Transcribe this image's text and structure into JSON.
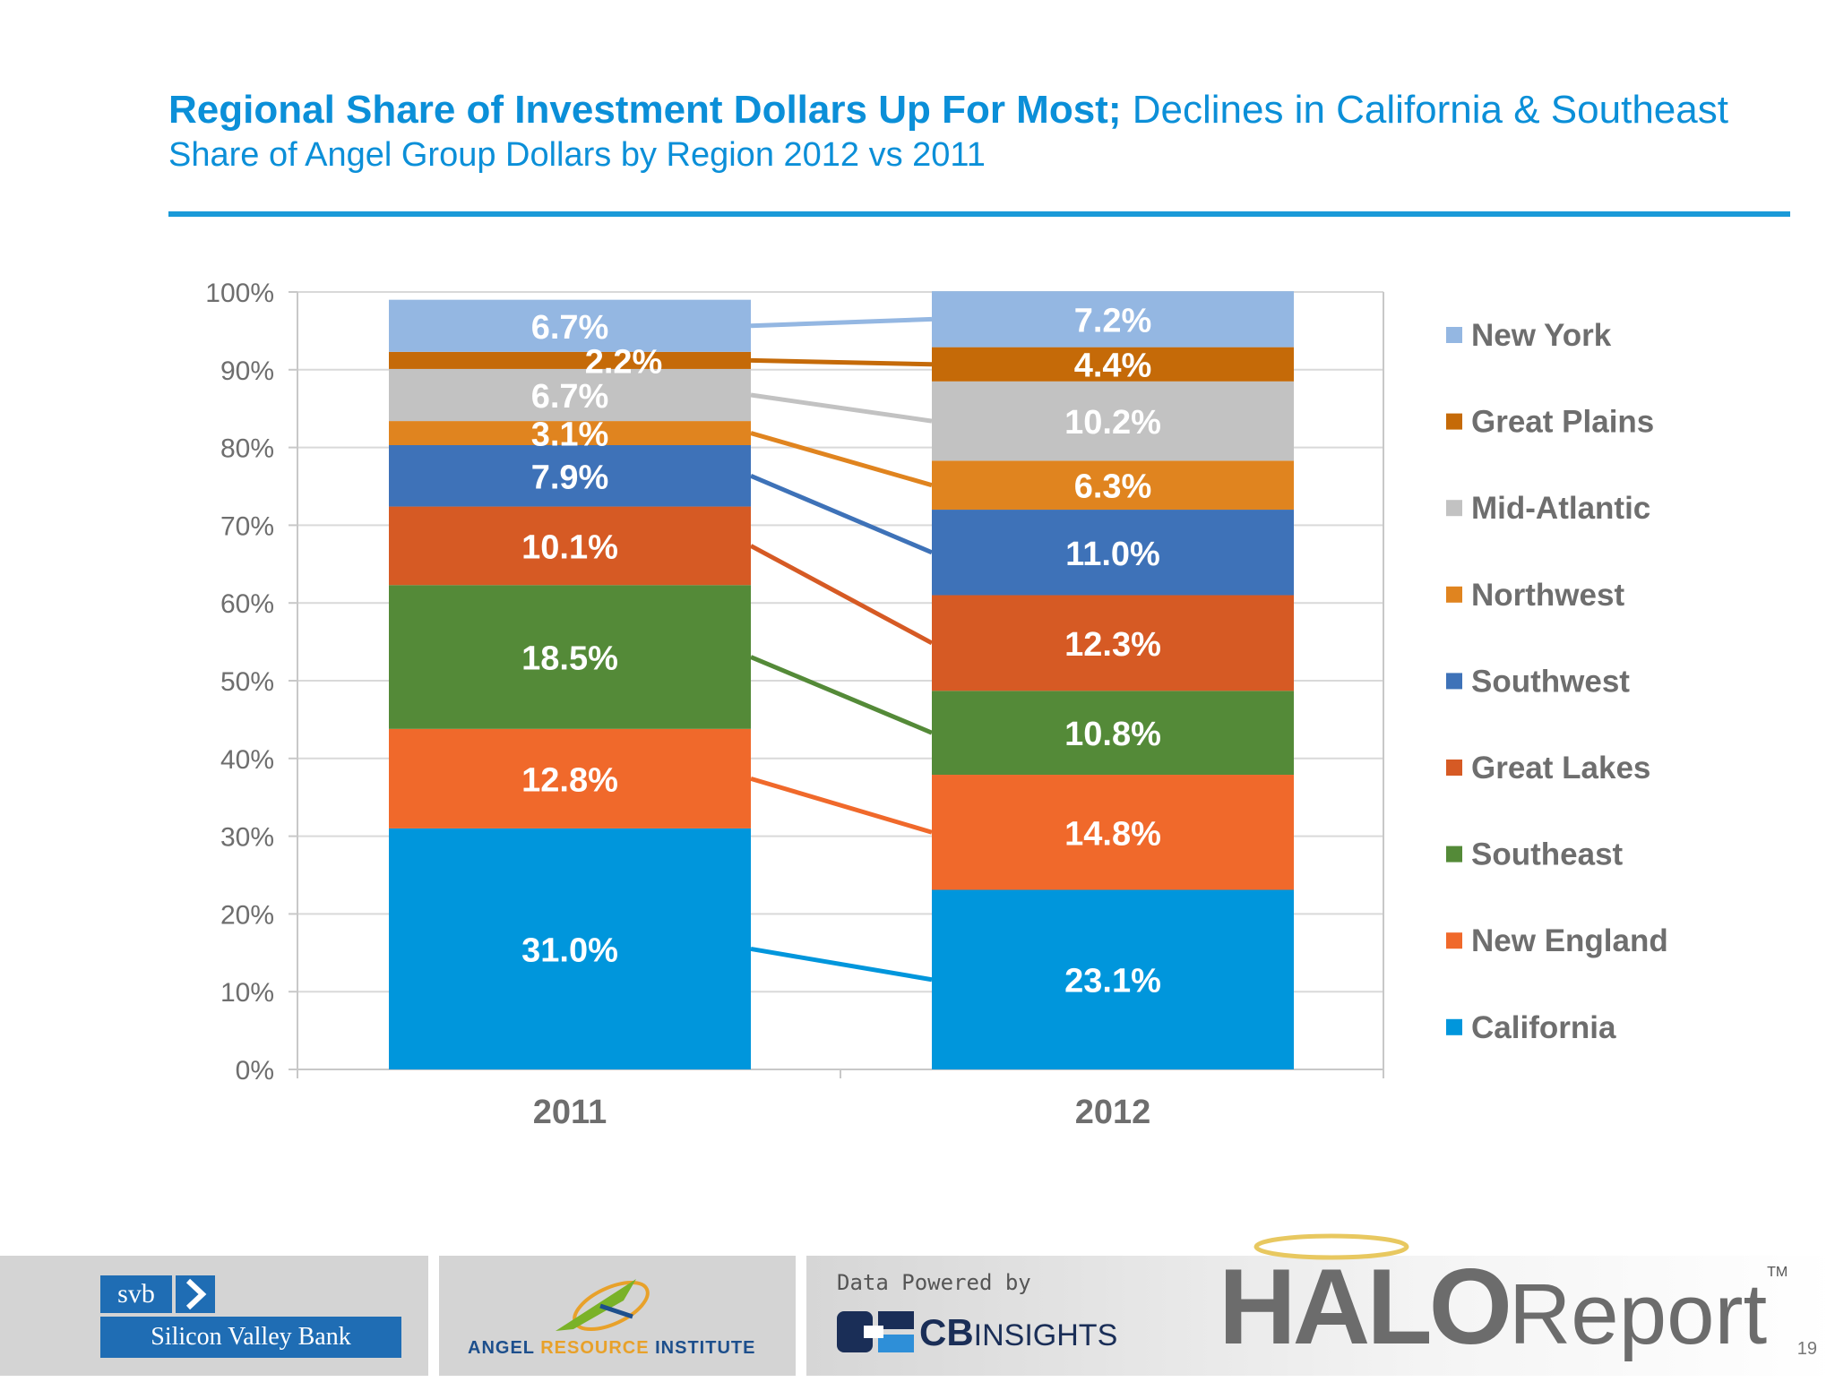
{
  "header": {
    "title_bold": "Regional Share of Investment Dollars Up For Most;",
    "title_regular": " Declines in California & Southeast",
    "subtitle": "Share of Angel Group Dollars by Region 2012 vs 2011"
  },
  "chart_data": {
    "type": "bar",
    "stacked": true,
    "categories": [
      "2011",
      "2012"
    ],
    "ylim": [
      0,
      100
    ],
    "yticks": [
      "0%",
      "10%",
      "20%",
      "30%",
      "40%",
      "50%",
      "60%",
      "70%",
      "80%",
      "90%",
      "100%"
    ],
    "legend_position": "right",
    "series": [
      {
        "name": "California",
        "color": "#0096dc",
        "values": [
          31.0,
          23.1
        ],
        "labels": [
          "31.0%",
          "23.1%"
        ]
      },
      {
        "name": "New England",
        "color": "#f0692b",
        "values": [
          12.8,
          14.8
        ],
        "labels": [
          "12.8%",
          "14.8%"
        ]
      },
      {
        "name": "Southeast",
        "color": "#548a38",
        "values": [
          18.5,
          10.8
        ],
        "labels": [
          "18.5%",
          "10.8%"
        ]
      },
      {
        "name": "Great Lakes",
        "color": "#d65a24",
        "values": [
          10.1,
          12.3
        ],
        "labels": [
          "10.1%",
          "12.3%"
        ]
      },
      {
        "name": "Southwest",
        "color": "#3e72b8",
        "values": [
          7.9,
          11.0
        ],
        "labels": [
          "7.9%",
          "11.0%"
        ]
      },
      {
        "name": "Northwest",
        "color": "#e0841f",
        "values": [
          3.1,
          6.3
        ],
        "labels": [
          "3.1%",
          "6.3%"
        ]
      },
      {
        "name": "Mid-Atlantic",
        "color": "#c2c2c2",
        "values": [
          6.7,
          10.2
        ],
        "labels": [
          "6.7%",
          "10.2%"
        ]
      },
      {
        "name": "Great Plains",
        "color": "#c56a08",
        "values": [
          2.2,
          4.4
        ],
        "labels": [
          "2.2%",
          "4.4%"
        ]
      },
      {
        "name": "New York",
        "color": "#94b7e2",
        "values": [
          6.7,
          7.2
        ],
        "labels": [
          "6.7%",
          "7.2%"
        ]
      }
    ],
    "legend_order": [
      "New York",
      "Great Plains",
      "Mid-Atlantic",
      "Northwest",
      "Southwest",
      "Great Lakes",
      "Southeast",
      "New England",
      "California"
    ]
  },
  "footer": {
    "svb_short": "svb",
    "svb_full": "Silicon Valley Bank",
    "ari_angel": "ANGEL ",
    "ari_resource": "RESOURCE",
    "ari_institute": " INSTITUTE",
    "powered_by": "Data Powered by",
    "cb_bold": "CB",
    "cb_light": "INSIGHTS",
    "halo": "HALO",
    "report": "Report",
    "tm": "TM",
    "page_number": "19"
  }
}
